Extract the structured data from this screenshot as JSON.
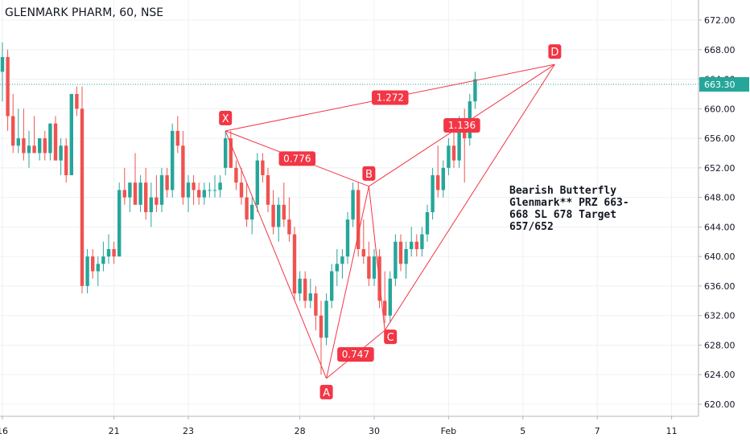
{
  "header": {
    "symbol_title": "GLENMARK PHARM, 60, NSE"
  },
  "annotation": {
    "text": "Bearish Butterfly\nGlenmark** PRZ 663-\n668 SL 678 Target\n657/652"
  },
  "chart_data": {
    "type": "candlestick",
    "ylim": [
      618,
      674
    ],
    "y_ticks": [
      "620.00",
      "624.00",
      "628.00",
      "632.00",
      "636.00",
      "640.00",
      "644.00",
      "648.00",
      "652.00",
      "656.00",
      "660.00",
      "664.00",
      "668.00",
      "672.00"
    ],
    "x_tick_labels": [
      {
        "label": "16",
        "bar": 0
      },
      {
        "label": "21",
        "bar": 21
      },
      {
        "label": "23",
        "bar": 35
      },
      {
        "label": "28",
        "bar": 56
      },
      {
        "label": "30",
        "bar": 70
      },
      {
        "label": "Feb",
        "bar": 84
      },
      {
        "label": "5",
        "bar": 98
      },
      {
        "label": "7",
        "bar": 112
      },
      {
        "label": "11",
        "bar": 126
      }
    ],
    "grid": true,
    "current_price": {
      "value": 663.3,
      "label": "663.30"
    },
    "colors": {
      "up": "#26a69a",
      "down": "#ef5350",
      "pattern": "#f23645",
      "price_line": "#26a69a"
    },
    "candles": [
      {
        "o": 665,
        "h": 669,
        "l": 661,
        "c": 667
      },
      {
        "o": 667,
        "h": 668,
        "l": 657,
        "c": 659
      },
      {
        "o": 659,
        "h": 662,
        "l": 654,
        "c": 655
      },
      {
        "o": 655,
        "h": 660,
        "l": 654,
        "c": 656
      },
      {
        "o": 656,
        "h": 660,
        "l": 653,
        "c": 654
      },
      {
        "o": 654,
        "h": 657,
        "l": 652,
        "c": 655
      },
      {
        "o": 655,
        "h": 659,
        "l": 654,
        "c": 654
      },
      {
        "o": 654,
        "h": 656,
        "l": 653,
        "c": 656
      },
      {
        "o": 656,
        "h": 657,
        "l": 653,
        "c": 654
      },
      {
        "o": 654,
        "h": 658,
        "l": 653,
        "c": 658
      },
      {
        "o": 658,
        "h": 659,
        "l": 653,
        "c": 653
      },
      {
        "o": 653,
        "h": 656,
        "l": 651,
        "c": 655
      },
      {
        "o": 655,
        "h": 656,
        "l": 650,
        "c": 651
      },
      {
        "o": 651,
        "h": 662,
        "l": 651,
        "c": 662
      },
      {
        "o": 662,
        "h": 663,
        "l": 659,
        "c": 660
      },
      {
        "o": 660,
        "h": 663,
        "l": 635,
        "c": 636
      },
      {
        "o": 636,
        "h": 641,
        "l": 635,
        "c": 640
      },
      {
        "o": 640,
        "h": 641,
        "l": 637,
        "c": 638
      },
      {
        "o": 638,
        "h": 640,
        "l": 636,
        "c": 639
      },
      {
        "o": 639,
        "h": 642,
        "l": 638,
        "c": 640
      },
      {
        "o": 640,
        "h": 643,
        "l": 639,
        "c": 641
      },
      {
        "o": 641,
        "h": 642,
        "l": 639,
        "c": 640
      },
      {
        "o": 640,
        "h": 650,
        "l": 640,
        "c": 649
      },
      {
        "o": 649,
        "h": 652,
        "l": 647,
        "c": 648
      },
      {
        "o": 648,
        "h": 650,
        "l": 646,
        "c": 650
      },
      {
        "o": 650,
        "h": 654,
        "l": 647,
        "c": 647
      },
      {
        "o": 647,
        "h": 651,
        "l": 646,
        "c": 650
      },
      {
        "o": 650,
        "h": 652,
        "l": 645,
        "c": 646
      },
      {
        "o": 646,
        "h": 650,
        "l": 644,
        "c": 648
      },
      {
        "o": 648,
        "h": 651,
        "l": 646,
        "c": 647
      },
      {
        "o": 647,
        "h": 652,
        "l": 646,
        "c": 651
      },
      {
        "o": 651,
        "h": 652,
        "l": 648,
        "c": 649
      },
      {
        "o": 649,
        "h": 658,
        "l": 648,
        "c": 657
      },
      {
        "o": 657,
        "h": 659,
        "l": 654,
        "c": 655
      },
      {
        "o": 655,
        "h": 657,
        "l": 647,
        "c": 648
      },
      {
        "o": 648,
        "h": 651,
        "l": 646,
        "c": 650
      },
      {
        "o": 650,
        "h": 651,
        "l": 647,
        "c": 649
      },
      {
        "o": 649,
        "h": 650,
        "l": 647,
        "c": 648
      },
      {
        "o": 648,
        "h": 650,
        "l": 647,
        "c": 649
      },
      {
        "o": 649,
        "h": 650,
        "l": 648,
        "c": 649
      },
      {
        "o": 649,
        "h": 651,
        "l": 648,
        "c": 649
      },
      {
        "o": 649,
        "h": 651,
        "l": 648,
        "c": 650
      },
      {
        "o": 652,
        "h": 657,
        "l": 651,
        "c": 656
      },
      {
        "o": 656,
        "h": 657,
        "l": 652,
        "c": 652
      },
      {
        "o": 652,
        "h": 653,
        "l": 649,
        "c": 650
      },
      {
        "o": 650,
        "h": 652,
        "l": 647,
        "c": 648
      },
      {
        "o": 648,
        "h": 650,
        "l": 644,
        "c": 645
      },
      {
        "o": 645,
        "h": 648,
        "l": 643,
        "c": 647
      },
      {
        "o": 647,
        "h": 654,
        "l": 646,
        "c": 653
      },
      {
        "o": 653,
        "h": 654,
        "l": 650,
        "c": 651
      },
      {
        "o": 651,
        "h": 652,
        "l": 646,
        "c": 647
      },
      {
        "o": 647,
        "h": 649,
        "l": 643,
        "c": 644
      },
      {
        "o": 644,
        "h": 648,
        "l": 642,
        "c": 647
      },
      {
        "o": 647,
        "h": 650,
        "l": 644,
        "c": 645
      },
      {
        "o": 645,
        "h": 648,
        "l": 642,
        "c": 643
      },
      {
        "o": 643,
        "h": 644,
        "l": 634,
        "c": 635
      },
      {
        "o": 635,
        "h": 638,
        "l": 634,
        "c": 637
      },
      {
        "o": 637,
        "h": 638,
        "l": 633,
        "c": 634
      },
      {
        "o": 634,
        "h": 637,
        "l": 633,
        "c": 635
      },
      {
        "o": 635,
        "h": 636,
        "l": 630,
        "c": 632
      },
      {
        "o": 632,
        "h": 634,
        "l": 624,
        "c": 629
      },
      {
        "o": 629,
        "h": 635,
        "l": 628,
        "c": 634
      },
      {
        "o": 634,
        "h": 639,
        "l": 633,
        "c": 638
      },
      {
        "o": 638,
        "h": 641,
        "l": 636,
        "c": 639
      },
      {
        "o": 639,
        "h": 641,
        "l": 637,
        "c": 640
      },
      {
        "o": 640,
        "h": 646,
        "l": 639,
        "c": 645
      },
      {
        "o": 645,
        "h": 650,
        "l": 644,
        "c": 649
      },
      {
        "o": 649,
        "h": 650,
        "l": 640,
        "c": 641
      },
      {
        "o": 641,
        "h": 645,
        "l": 639,
        "c": 640
      },
      {
        "o": 640,
        "h": 642,
        "l": 636,
        "c": 637
      },
      {
        "o": 637,
        "h": 641,
        "l": 636,
        "c": 640
      },
      {
        "o": 640,
        "h": 641,
        "l": 633,
        "c": 634
      },
      {
        "o": 634,
        "h": 638,
        "l": 631,
        "c": 632
      },
      {
        "o": 632,
        "h": 638,
        "l": 631,
        "c": 637
      },
      {
        "o": 637,
        "h": 643,
        "l": 636,
        "c": 642
      },
      {
        "o": 642,
        "h": 643,
        "l": 638,
        "c": 639
      },
      {
        "o": 639,
        "h": 642,
        "l": 637,
        "c": 641
      },
      {
        "o": 641,
        "h": 644,
        "l": 640,
        "c": 642
      },
      {
        "o": 642,
        "h": 643,
        "l": 640,
        "c": 641
      },
      {
        "o": 641,
        "h": 644,
        "l": 640,
        "c": 643
      },
      {
        "o": 643,
        "h": 647,
        "l": 642,
        "c": 646
      },
      {
        "o": 646,
        "h": 652,
        "l": 645,
        "c": 651
      },
      {
        "o": 651,
        "h": 655,
        "l": 648,
        "c": 649
      },
      {
        "o": 649,
        "h": 653,
        "l": 648,
        "c": 652
      },
      {
        "o": 652,
        "h": 656,
        "l": 651,
        "c": 655
      },
      {
        "o": 655,
        "h": 657,
        "l": 652,
        "c": 653
      },
      {
        "o": 653,
        "h": 659,
        "l": 652,
        "c": 658
      },
      {
        "o": 658,
        "h": 660,
        "l": 650,
        "c": 656
      },
      {
        "o": 656,
        "h": 662,
        "l": 655,
        "c": 661
      },
      {
        "o": 661,
        "h": 665,
        "l": 660,
        "c": 664
      }
    ],
    "pattern_points": [
      {
        "label": "X",
        "bar": 42,
        "price": 657,
        "label_position": "above"
      },
      {
        "label": "A",
        "bar": 61,
        "price": 623.5,
        "label_position": "below"
      },
      {
        "label": "B",
        "bar": 69,
        "price": 649.5,
        "label_position": "above"
      },
      {
        "label": "C",
        "bar": 72,
        "price": 630,
        "label_position": "right"
      },
      {
        "label": "D",
        "bar": 104,
        "price": 666,
        "label_position": "above"
      }
    ],
    "ratios": [
      {
        "label": "1.272",
        "from": "X",
        "to": "D"
      },
      {
        "label": "1.136",
        "from": "B",
        "to": "D"
      },
      {
        "label": "0.776",
        "from": "X",
        "to": "B"
      },
      {
        "label": "0.747",
        "from": "A",
        "to": "C"
      }
    ]
  }
}
